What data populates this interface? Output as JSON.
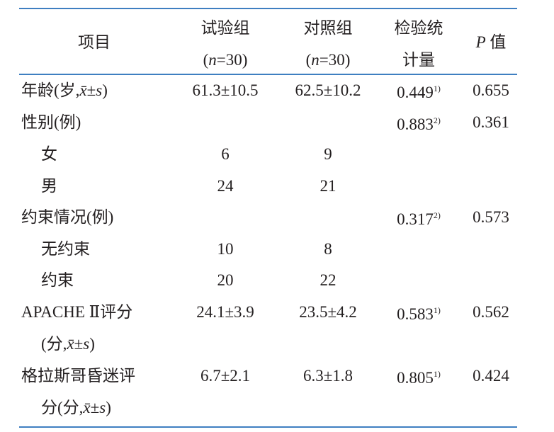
{
  "table": {
    "header": [
      [
        "项目"
      ],
      [
        "试验组",
        "(n=30)"
      ],
      [
        "对照组",
        "(n=30)"
      ],
      [
        "检验统",
        "计量"
      ],
      [
        "P 值"
      ]
    ],
    "rows": [
      [
        [
          "年龄(岁,x̄±s)"
        ],
        "61.3±10.5",
        "62.5±10.2",
        {
          "value": "0.449",
          "note": "1)"
        },
        "0.655"
      ],
      [
        [
          "性别(例)"
        ],
        null,
        null,
        {
          "value": "0.883",
          "note": "2)"
        },
        "0.361"
      ],
      [
        [
          "女"
        ],
        "6",
        "9",
        null,
        null
      ],
      [
        [
          "男"
        ],
        "24",
        "21",
        null,
        null
      ],
      [
        [
          "约束情况(例)"
        ],
        null,
        null,
        {
          "value": "0.317",
          "note": "2)"
        },
        "0.573"
      ],
      [
        [
          "无约束"
        ],
        "10",
        "8",
        null,
        null
      ],
      [
        [
          "约束"
        ],
        "20",
        "22",
        null,
        null
      ],
      [
        [
          "APACHE Ⅱ评分",
          "(分,x̄±s)"
        ],
        "24.1±3.9",
        "23.5±4.2",
        {
          "value": "0.583",
          "note": "1)"
        },
        "0.562"
      ],
      [
        [
          "格拉斯哥昏迷评",
          "分(分,x̄±s)"
        ],
        "6.7±2.1",
        "6.3±1.8",
        {
          "value": "0.805",
          "note": "1)"
        },
        "0.424"
      ]
    ]
  }
}
